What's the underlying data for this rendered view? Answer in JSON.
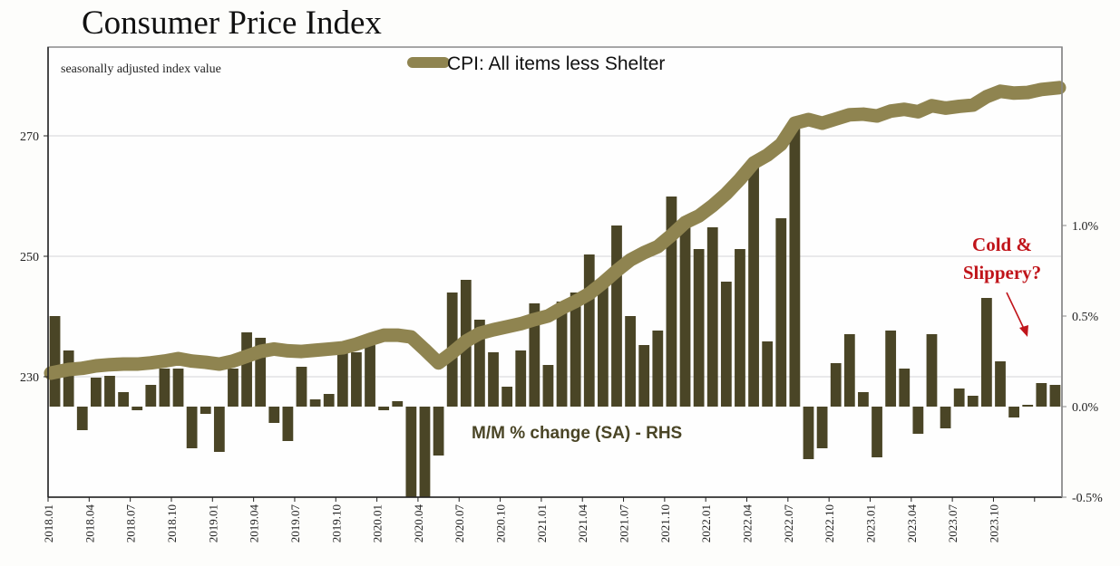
{
  "chart_data": {
    "type": "bar+line",
    "title": "Consumer Price Index",
    "subtitle": "seasonally adjusted index value",
    "left_axis": {
      "ticks": [
        230,
        250,
        270
      ],
      "tick_labels": [
        "230",
        "250",
        "270"
      ],
      "range": [
        215,
        290
      ]
    },
    "right_axis": {
      "ticks": [
        -0.5,
        0.0,
        0.5,
        1.0
      ],
      "tick_labels": [
        "-0.5%",
        "0.0%",
        "0.5%",
        "1.0%"
      ],
      "range": [
        -0.5,
        1.995
      ]
    },
    "x_tick_labels": [
      "2018.01",
      "2018.04",
      "2018.07",
      "2018.10",
      "2019.01",
      "2019.04",
      "2019.07",
      "2019.10",
      "2020.01",
      "2020.04",
      "2020.07",
      "2020.10",
      "2021.01",
      "2021.04",
      "2021.07",
      "2021.10",
      "2022.01",
      "2022.04",
      "2022.07",
      "2022.10",
      "2023.01",
      "2023.04",
      "2023.07",
      "2023.10"
    ],
    "grid": true,
    "months": [
      "2018.01",
      "2018.02",
      "2018.03",
      "2018.04",
      "2018.05",
      "2018.06",
      "2018.07",
      "2018.08",
      "2018.09",
      "2018.10",
      "2018.11",
      "2018.12",
      "2019.01",
      "2019.02",
      "2019.03",
      "2019.04",
      "2019.05",
      "2019.06",
      "2019.07",
      "2019.08",
      "2019.09",
      "2019.10",
      "2019.11",
      "2019.12",
      "2020.01",
      "2020.02",
      "2020.03",
      "2020.04",
      "2020.05",
      "2020.06",
      "2020.07",
      "2020.08",
      "2020.09",
      "2020.10",
      "2020.11",
      "2020.12",
      "2021.01",
      "2021.02",
      "2021.03",
      "2021.04",
      "2021.05",
      "2021.06",
      "2021.07",
      "2021.08",
      "2021.09",
      "2021.10",
      "2021.11",
      "2021.12",
      "2022.01",
      "2022.02",
      "2022.03",
      "2022.04",
      "2022.05",
      "2022.06",
      "2022.07",
      "2022.08",
      "2022.09",
      "2022.10",
      "2022.11",
      "2022.12",
      "2023.01",
      "2023.02",
      "2023.03",
      "2023.04",
      "2023.05",
      "2023.06",
      "2023.07",
      "2023.08",
      "2023.09",
      "2023.10",
      "2023.11",
      "2023.12",
      "2024.01",
      "2024.02"
    ],
    "series": [
      {
        "name": "CPI: All items less Shelter",
        "axis": "left",
        "kind": "line",
        "color": "#8f8450",
        "values": [
          230.6,
          231.2,
          231.4,
          231.8,
          232.0,
          232.1,
          232.1,
          232.3,
          232.6,
          233.0,
          232.6,
          232.4,
          232.1,
          232.6,
          233.4,
          234.2,
          234.6,
          234.3,
          234.2,
          234.4,
          234.6,
          234.8,
          235.4,
          236.2,
          236.9,
          236.9,
          236.6,
          234.5,
          232.3,
          234.0,
          235.9,
          237.2,
          237.8,
          238.3,
          238.8,
          239.5,
          240.1,
          241.4,
          242.5,
          243.8,
          245.6,
          247.6,
          249.4,
          250.6,
          251.6,
          253.5,
          255.6,
          256.7,
          258.4,
          260.4,
          262.8,
          265.5,
          266.8,
          268.6,
          272.1,
          272.7,
          272.1,
          272.8,
          273.5,
          273.6,
          273.3,
          274.1,
          274.4,
          274.0,
          275.0,
          274.6,
          274.9,
          275.1,
          276.5,
          277.4,
          277.1,
          277.2,
          277.7,
          278.0
        ],
        "legend": "top-center"
      },
      {
        "name": "M/M % change (SA) - RHS",
        "axis": "right",
        "kind": "bar",
        "color": "#4a4526",
        "values": [
          0.5,
          0.31,
          -0.13,
          0.16,
          0.17,
          0.08,
          -0.02,
          0.12,
          0.21,
          0.21,
          -0.23,
          -0.04,
          -0.25,
          0.21,
          0.41,
          0.38,
          -0.09,
          -0.19,
          0.22,
          0.04,
          0.07,
          0.3,
          0.3,
          0.34,
          -0.02,
          0.03,
          -0.55,
          -0.62,
          -0.27,
          0.63,
          0.7,
          0.48,
          0.3,
          0.11,
          0.31,
          0.57,
          0.23,
          0.58,
          0.63,
          0.84,
          0.66,
          1.0,
          0.5,
          0.34,
          0.42,
          1.16,
          1.04,
          0.87,
          0.99,
          0.69,
          0.87,
          1.34,
          0.36,
          1.04,
          1.54,
          -0.29,
          -0.23,
          0.24,
          0.4,
          0.08,
          -0.28,
          0.42,
          0.21,
          -0.15,
          0.4,
          -0.12,
          0.1,
          0.06,
          0.6,
          0.25,
          -0.06,
          0.01,
          0.13,
          0.12
        ]
      }
    ],
    "annotations": [
      {
        "text_line1": "Cold &",
        "text_line2": "Slippery?",
        "color": "#c0141a",
        "points_to": "2024.01"
      }
    ]
  }
}
